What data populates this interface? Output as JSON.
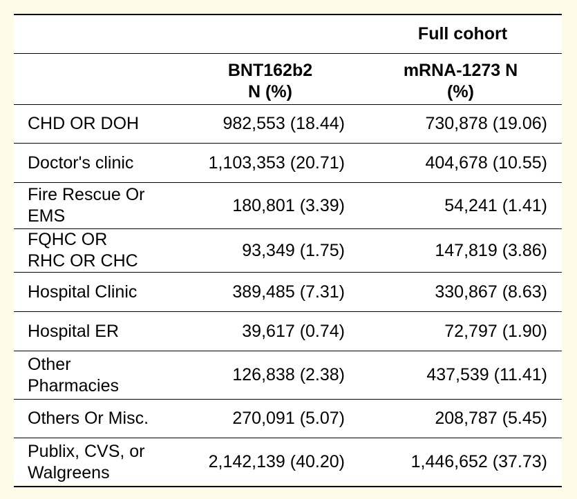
{
  "table": {
    "group_header": "Full cohort",
    "columns": [
      {
        "line1": "BNT162b2",
        "line2": "N (%)"
      },
      {
        "line1": "mRNA-1273 N",
        "line2": "(%)"
      }
    ],
    "rows": [
      {
        "label": [
          "CHD OR DOH"
        ],
        "bnt": "982,553 (18.44)",
        "mrna": "730,878 (19.06)"
      },
      {
        "label": [
          "Doctor's clinic"
        ],
        "bnt": "1,103,353 (20.71)",
        "mrna": "404,678 (10.55)"
      },
      {
        "label": [
          "Fire Rescue Or",
          "EMS"
        ],
        "bnt": "180,801 (3.39)",
        "mrna": "54,241 (1.41)"
      },
      {
        "label": [
          "FQHC OR",
          "RHC OR CHC"
        ],
        "bnt": "93,349 (1.75)",
        "mrna": "147,819 (3.86)"
      },
      {
        "label": [
          "Hospital Clinic"
        ],
        "bnt": "389,485 (7.31)",
        "mrna": "330,867 (8.63)"
      },
      {
        "label": [
          "Hospital ER"
        ],
        "bnt": "39,617 (0.74)",
        "mrna": "72,797 (1.90)"
      },
      {
        "label": [
          "Other",
          "Pharmacies"
        ],
        "bnt": "126,838 (2.38)",
        "mrna": "437,539 (11.41)"
      },
      {
        "label": [
          "Others Or Misc."
        ],
        "bnt": "270,091 (5.07)",
        "mrna": "208,787 (5.45)"
      },
      {
        "label": [
          "Publix, CVS, or",
          "Walgreens"
        ],
        "bnt": "2,142,139 (40.20)",
        "mrna": "1,446,652 (37.73)"
      }
    ]
  }
}
